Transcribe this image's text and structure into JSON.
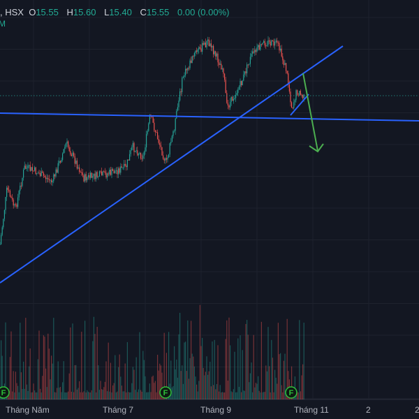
{
  "header": {
    "symbol_suffix": ", HSX",
    "o_label": "O",
    "o_value": "15.55",
    "h_label": "H",
    "h_value": "15.60",
    "l_label": "L",
    "l_value": "15.40",
    "c_label": "C",
    "c_value": "15.55",
    "change": "0.00 (0.00%)",
    "sub_label": "M"
  },
  "chart_data": {
    "type": "candlestick",
    "x_tick_labels": [
      "Tháng Năm",
      "Tháng 7",
      "Tháng 9",
      "Tháng 11",
      "2",
      "2"
    ],
    "last": {
      "open": 15.55,
      "high": 15.6,
      "low": 15.4,
      "close": 15.55
    },
    "event_markers": [
      "F",
      "F",
      "F"
    ],
    "drawings": [
      "horizontal support line",
      "rising trendline",
      "rising channel line",
      "downward arrow projection"
    ]
  },
  "colors": {
    "up": "#26a69a",
    "down": "#ef5350",
    "trend": "#2962ff",
    "arrow": "#4caf50",
    "bg": "#131722"
  }
}
